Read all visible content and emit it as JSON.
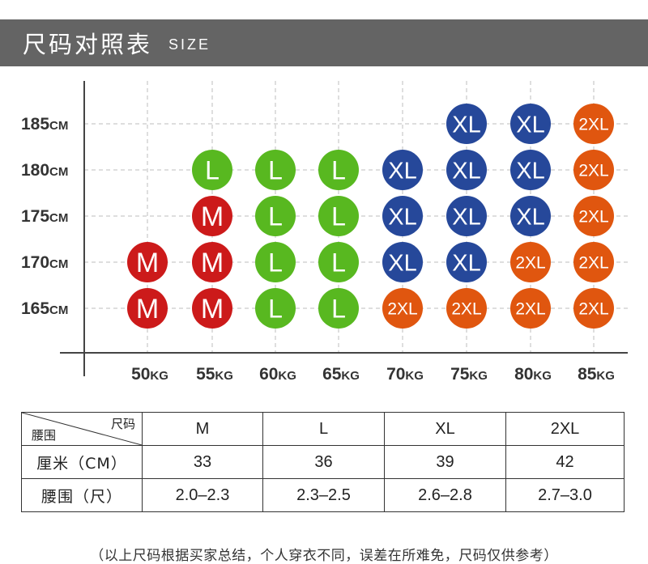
{
  "header": {
    "title": "尺码对照表",
    "subtitle": "SIZE"
  },
  "chart_data": {
    "type": "table",
    "heights": [
      "185CM",
      "180CM",
      "175CM",
      "170CM",
      "165CM"
    ],
    "weights": [
      "50KG",
      "55KG",
      "60KG",
      "65KG",
      "70KG",
      "75KG",
      "80KG",
      "85KG"
    ],
    "rows": [
      [
        "",
        "",
        "",
        "",
        "",
        "XL",
        "XL",
        "2XL"
      ],
      [
        "",
        "L",
        "L",
        "L",
        "XL",
        "XL",
        "XL",
        "2XL"
      ],
      [
        "",
        "M",
        "L",
        "L",
        "XL",
        "XL",
        "XL",
        "2XL"
      ],
      [
        "M",
        "M",
        "L",
        "L",
        "XL",
        "XL",
        "2XL",
        "2XL"
      ],
      [
        "M",
        "M",
        "L",
        "L",
        "2XL",
        "2XL",
        "2XL",
        "2XL"
      ]
    ],
    "colors": {
      "M": "#cc1a1a",
      "L": "#58b820",
      "XL": "#26489a",
      "2XL": "#e0560f"
    }
  },
  "size_table": {
    "corner_top": "尺码",
    "corner_bottom": "腰围",
    "sizes": [
      "M",
      "L",
      "XL",
      "2XL"
    ],
    "rows": [
      {
        "label": "厘米（CM）",
        "values": [
          "33",
          "36",
          "39",
          "42"
        ]
      },
      {
        "label": "腰围（尺）",
        "values": [
          "2.0–2.3",
          "2.3–2.5",
          "2.6–2.8",
          "2.7–3.0"
        ]
      }
    ]
  },
  "footnote": "（以上尺码根据买家总结，个人穿衣不同，误差在所难免，尺码仅供参考）"
}
